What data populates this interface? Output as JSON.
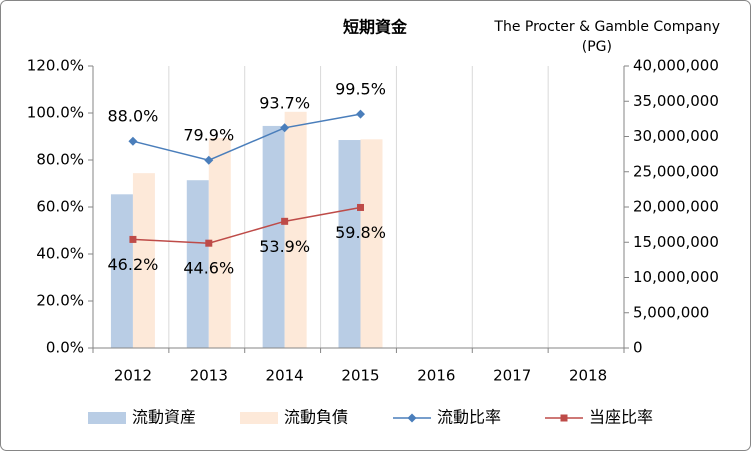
{
  "chart_data": {
    "type": "bar",
    "title": "短期資金",
    "subtitle": [
      "The Procter & Gamble Company",
      "(PG)"
    ],
    "categories": [
      "2012",
      "2013",
      "2014",
      "2015",
      "2016",
      "2017",
      "2018"
    ],
    "series": [
      {
        "name": "流動資産",
        "type": "bar",
        "axis": "y2",
        "color": "#b9cde5",
        "values": [
          21800000,
          23800000,
          31500000,
          29500000,
          null,
          null,
          null
        ]
      },
      {
        "name": "流動負債",
        "type": "bar",
        "axis": "y2",
        "color": "#fde9d9",
        "values": [
          24800000,
          29800000,
          33500000,
          29600000,
          null,
          null,
          null
        ]
      },
      {
        "name": "流動比率",
        "type": "line",
        "color": "#4a7ebb",
        "marker": "diamond",
        "label_position": "above",
        "values": [
          88.0,
          79.9,
          93.7,
          99.5,
          null,
          null,
          null
        ],
        "value_labels": [
          "88.0%",
          "79.9%",
          "93.7%",
          "99.5%",
          null,
          null,
          null
        ]
      },
      {
        "name": "当座比率",
        "type": "line",
        "color": "#be4b48",
        "marker": "square",
        "label_position": "below",
        "values": [
          46.2,
          44.6,
          53.9,
          59.8,
          null,
          null,
          null
        ],
        "value_labels": [
          "46.2%",
          "44.6%",
          "53.9%",
          "59.8%",
          null,
          null,
          null
        ]
      }
    ],
    "ylim": [
      0,
      120
    ],
    "yticks": [
      {
        "value": 0,
        "label": "0.0%"
      },
      {
        "value": 20,
        "label": "20.0%"
      },
      {
        "value": 40,
        "label": "40.0%"
      },
      {
        "value": 60,
        "label": "60.0%"
      },
      {
        "value": 80,
        "label": "80.0%"
      },
      {
        "value": 100,
        "label": "100.0%"
      },
      {
        "value": 120,
        "label": "120.0%"
      }
    ],
    "y2lim": [
      0,
      40000000
    ],
    "y2ticks": [
      0,
      {
        "value": 5000000,
        "label": "5,000,000"
      },
      {
        "value": 10000000,
        "label": "10,000,000"
      },
      {
        "value": 15000000,
        "label": "15,000,000"
      },
      {
        "value": 20000000,
        "label": "20,000,000"
      },
      {
        "value": 25000000,
        "label": "25,000,000"
      },
      {
        "value": 30000000,
        "label": "30,000,000"
      },
      {
        "value": 35000000,
        "label": "35,000,000"
      },
      {
        "value": 40000000,
        "label": "40,000,000"
      }
    ],
    "legend": "bottom"
  }
}
